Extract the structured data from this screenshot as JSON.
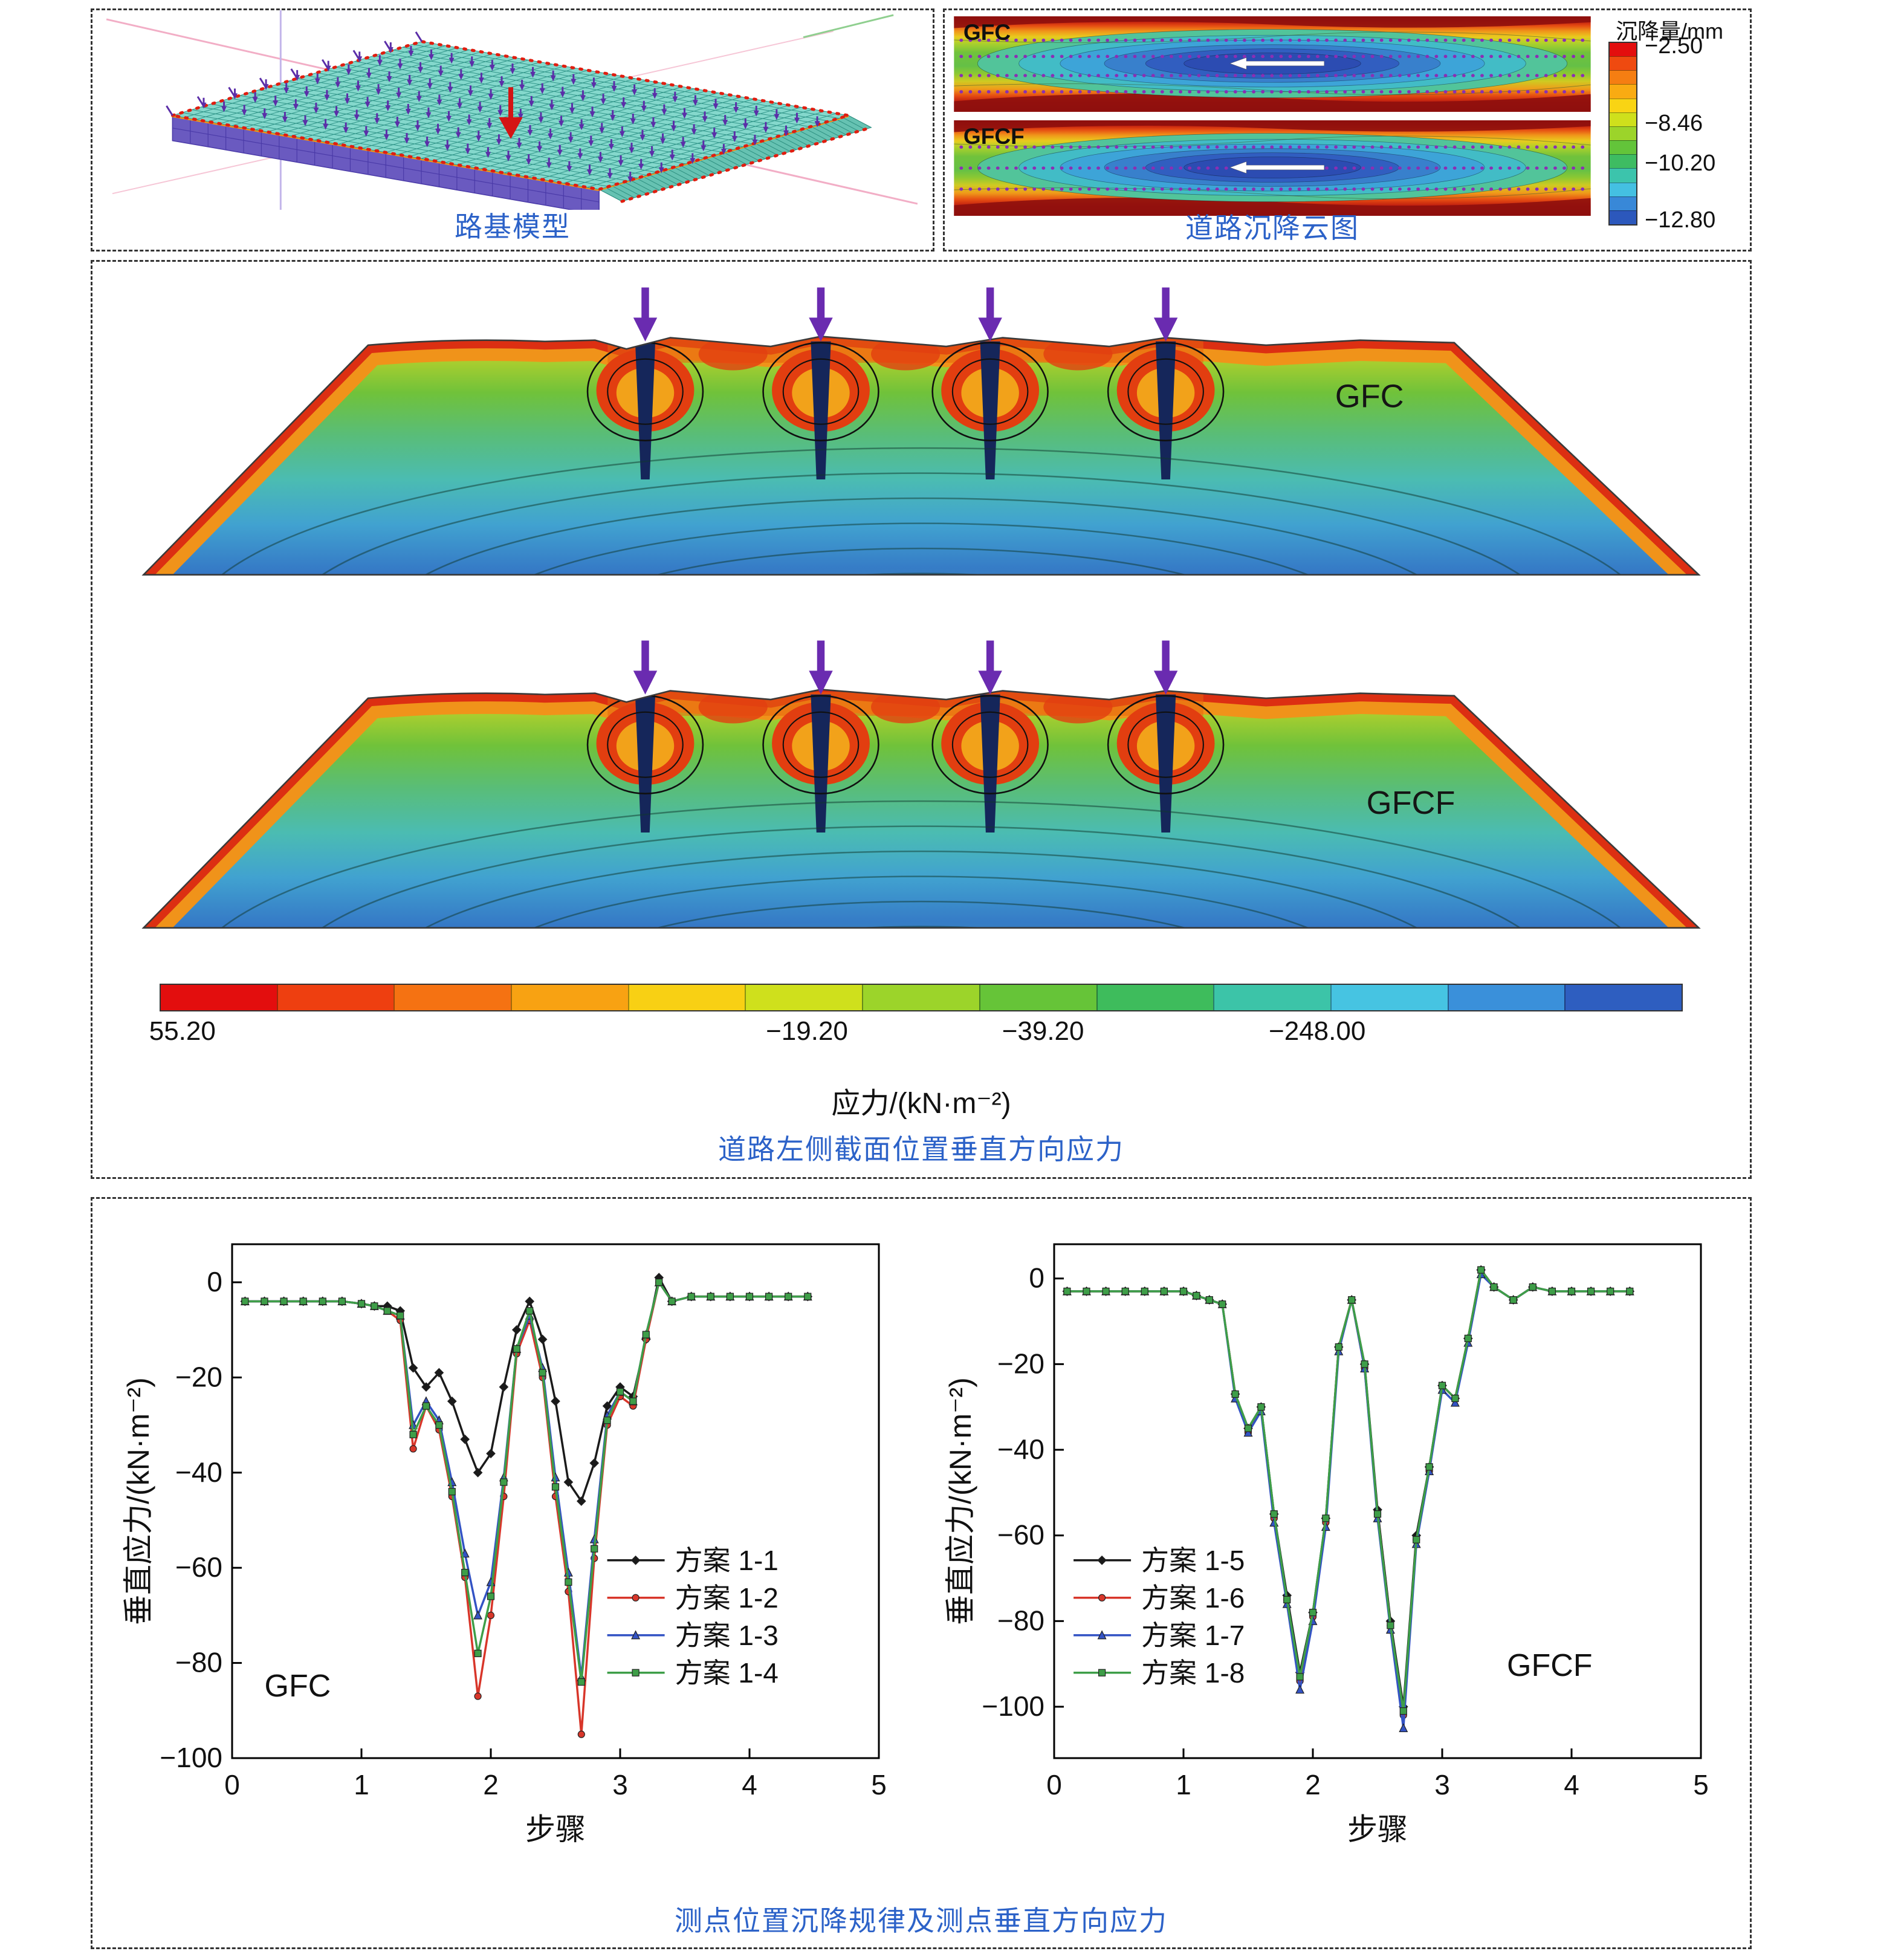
{
  "figure": {
    "caption_color": "#2c62c8",
    "panels": {
      "model": {
        "caption": "路基模型"
      },
      "settlement": {
        "caption": "道路沉降云图",
        "colorbar_title": "沉降量/mm",
        "colorbar_ticks": [
          "−2.50",
          "−8.46",
          "−10.20",
          "−12.80"
        ],
        "colorbar_colors": [
          "#e30e0e",
          "#ef4a10",
          "#f57e12",
          "#f9ab12",
          "#f9d414",
          "#cfe01c",
          "#9cd42a",
          "#63c43a",
          "#3ebc62",
          "#3cc4ac",
          "#44c0e2",
          "#3888d8",
          "#2c58bc"
        ],
        "bands": [
          {
            "label": "GFC"
          },
          {
            "label": "GFCF"
          }
        ]
      },
      "stress": {
        "caption": "道路左侧截面位置垂直方向应力",
        "axis_label": "应力/(kN·m⁻²)",
        "colorbar_ticks": [
          "55.20",
          "−19.20",
          "−39.20",
          "−248.00"
        ],
        "colorbar_colors": [
          "#e30e0e",
          "#ee3f10",
          "#f57212",
          "#f8a212",
          "#f8d014",
          "#cfe01c",
          "#9cd42a",
          "#66c438",
          "#3ebc5c",
          "#3cc4a8",
          "#46c4e2",
          "#3a90da",
          "#2e5ec0"
        ],
        "sections": [
          {
            "label": "GFC"
          },
          {
            "label": "GFCF"
          }
        ]
      },
      "charts": {
        "caption": "测点位置沉降规律及测点垂直方向应力"
      }
    }
  },
  "chart_data": [
    {
      "type": "line",
      "xlabel": "步骤",
      "ylabel": "垂直应力/(kN·m⁻²)",
      "annotation": {
        "text": "GFC",
        "fx": 0.05,
        "fy": 0.88
      },
      "legend": {
        "fx": 0.58,
        "fy": 0.615
      },
      "xlim": [
        0,
        5
      ],
      "ylim": [
        -100,
        8
      ],
      "xticks": [
        0,
        1,
        2,
        3,
        4,
        5
      ],
      "yticks": [
        0,
        -20,
        -40,
        -60,
        -80,
        -100
      ],
      "x": [
        0.1,
        0.25,
        0.4,
        0.55,
        0.7,
        0.85,
        1.0,
        1.1,
        1.2,
        1.3,
        1.4,
        1.5,
        1.6,
        1.7,
        1.8,
        1.9,
        2.0,
        2.1,
        2.2,
        2.3,
        2.4,
        2.5,
        2.6,
        2.7,
        2.8,
        2.9,
        3.0,
        3.1,
        3.2,
        3.3,
        3.4,
        3.55,
        3.7,
        3.85,
        4.0,
        4.15,
        4.3,
        4.45
      ],
      "series": [
        {
          "name": "方案 1-1",
          "color": "#1a1a1a",
          "marker": "diamond",
          "values": [
            -4,
            -4,
            -4,
            -4,
            -4,
            -4,
            -4.5,
            -5,
            -5,
            -6,
            -18,
            -22,
            -19,
            -25,
            -33,
            -40,
            -36,
            -22,
            -10,
            -4,
            -12,
            -25,
            -42,
            -46,
            -38,
            -26,
            -22,
            -24,
            -12,
            1,
            -4,
            -3,
            -3,
            -3,
            -3,
            -3,
            -3,
            -3
          ]
        },
        {
          "name": "方案 1-2",
          "color": "#d8362a",
          "marker": "circle",
          "values": [
            -4,
            -4,
            -4,
            -4,
            -4,
            -4,
            -4.5,
            -5,
            -6,
            -8,
            -35,
            -26,
            -31,
            -45,
            -62,
            -87,
            -70,
            -45,
            -15,
            -8,
            -20,
            -45,
            -65,
            -95,
            -58,
            -30,
            -24,
            -26,
            -12,
            0,
            -4,
            -3,
            -3,
            -3,
            -3,
            -3,
            -3,
            -3
          ]
        },
        {
          "name": "方案 1-3",
          "color": "#3353c4",
          "marker": "triangle",
          "values": [
            -4,
            -4,
            -4,
            -4,
            -4,
            -4,
            -4.5,
            -5,
            -6,
            -7,
            -30,
            -25,
            -29,
            -42,
            -57,
            -70,
            -63,
            -41,
            -14,
            -7,
            -18,
            -41,
            -61,
            -83,
            -54,
            -28,
            -23,
            -25,
            -11,
            0,
            -4,
            -3,
            -3,
            -3,
            -3,
            -3,
            -3,
            -3
          ]
        },
        {
          "name": "方案 1-4",
          "color": "#3e9e48",
          "marker": "square",
          "values": [
            -4,
            -4,
            -4,
            -4,
            -4,
            -4,
            -4.5,
            -5,
            -6,
            -7,
            -32,
            -26,
            -30,
            -44,
            -61,
            -78,
            -66,
            -42,
            -14,
            -6,
            -19,
            -43,
            -63,
            -84,
            -56,
            -29,
            -23,
            -25,
            -11,
            0,
            -4,
            -3,
            -3,
            -3,
            -3,
            -3,
            -3,
            -3
          ]
        }
      ]
    },
    {
      "type": "line",
      "xlabel": "步骤",
      "ylabel": "垂直应力/(kN·m⁻²)",
      "annotation": {
        "text": "GFCF",
        "fx": 0.7,
        "fy": 0.84
      },
      "legend": {
        "fx": 0.03,
        "fy": 0.615
      },
      "xlim": [
        0,
        5
      ],
      "ylim": [
        -112,
        8
      ],
      "xticks": [
        0,
        1,
        2,
        3,
        4,
        5
      ],
      "yticks": [
        0,
        -20,
        -40,
        -60,
        -80,
        -100
      ],
      "x": [
        0.1,
        0.25,
        0.4,
        0.55,
        0.7,
        0.85,
        1.0,
        1.1,
        1.2,
        1.3,
        1.4,
        1.5,
        1.6,
        1.7,
        1.8,
        1.9,
        2.0,
        2.1,
        2.2,
        2.3,
        2.4,
        2.5,
        2.6,
        2.7,
        2.8,
        2.9,
        3.0,
        3.1,
        3.2,
        3.3,
        3.4,
        3.55,
        3.7,
        3.85,
        4.0,
        4.15,
        4.3,
        4.45
      ],
      "series": [
        {
          "name": "方案 1-5",
          "color": "#1a1a1a",
          "marker": "diamond",
          "values": [
            -3,
            -3,
            -3,
            -3,
            -3,
            -3,
            -3,
            -4,
            -5,
            -6,
            -27,
            -35,
            -30,
            -55,
            -74,
            -92,
            -78,
            -56,
            -16,
            -5,
            -20,
            -54,
            -80,
            -100,
            -60,
            -44,
            -25,
            -28,
            -14,
            2,
            -2,
            -5,
            -2,
            -3,
            -3,
            -3,
            -3,
            -3
          ]
        },
        {
          "name": "方案 1-6",
          "color": "#d8362a",
          "marker": "circle",
          "values": [
            -3,
            -3,
            -3,
            -3,
            -3,
            -3,
            -3,
            -4,
            -5,
            -6,
            -27,
            -36,
            -30,
            -56,
            -75,
            -94,
            -79,
            -57,
            -16,
            -5,
            -21,
            -55,
            -81,
            -102,
            -61,
            -45,
            -25,
            -28,
            -14,
            2,
            -2,
            -5,
            -2,
            -3,
            -3,
            -3,
            -3,
            -3
          ]
        },
        {
          "name": "方案 1-7",
          "color": "#3353c4",
          "marker": "triangle",
          "values": [
            -3,
            -3,
            -3,
            -3,
            -3,
            -3,
            -3,
            -4,
            -5,
            -6,
            -28,
            -36,
            -31,
            -57,
            -76,
            -96,
            -80,
            -58,
            -17,
            -5,
            -21,
            -56,
            -82,
            -105,
            -62,
            -45,
            -26,
            -29,
            -15,
            1,
            -2,
            -5,
            -2,
            -3,
            -3,
            -3,
            -3,
            -3
          ]
        },
        {
          "name": "方案 1-8",
          "color": "#3e9e48",
          "marker": "square",
          "values": [
            -3,
            -3,
            -3,
            -3,
            -3,
            -3,
            -3,
            -4,
            -5,
            -6,
            -27,
            -35,
            -30,
            -55,
            -75,
            -93,
            -78,
            -56,
            -16,
            -5,
            -20,
            -55,
            -81,
            -101,
            -61,
            -44,
            -25,
            -28,
            -14,
            2,
            -2,
            -5,
            -2,
            -3,
            -3,
            -3,
            -3,
            -3
          ]
        }
      ]
    }
  ]
}
